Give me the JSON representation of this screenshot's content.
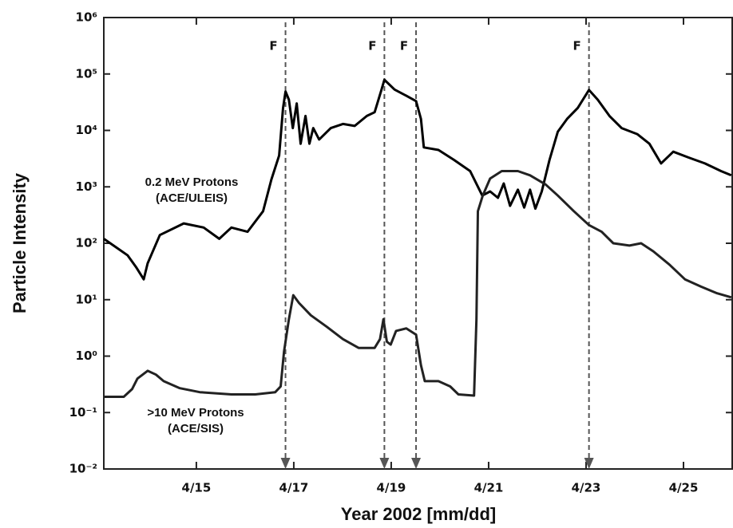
{
  "chart_data": {
    "type": "line",
    "xlabel": "Year 2002 [mm/dd]",
    "ylabel": "Particle Intensity",
    "ylog": true,
    "xlim": [
      13.1,
      26
    ],
    "ylim": [
      0.01,
      1000000
    ],
    "xticks": [
      {
        "value": 15,
        "label": "4/15"
      },
      {
        "value": 17,
        "label": "4/17"
      },
      {
        "value": 19,
        "label": "4/19"
      },
      {
        "value": 21,
        "label": "4/21"
      },
      {
        "value": 23,
        "label": "4/23"
      },
      {
        "value": 25,
        "label": "4/25"
      }
    ],
    "yticks": [
      {
        "value": 0.01,
        "label": "10⁻²"
      },
      {
        "value": 0.1,
        "label": "10⁻¹"
      },
      {
        "value": 1,
        "label": "10⁰"
      },
      {
        "value": 10,
        "label": "10¹"
      },
      {
        "value": 100,
        "label": "10²"
      },
      {
        "value": 1000,
        "label": "10³"
      },
      {
        "value": 10000,
        "label": "10⁴"
      },
      {
        "value": 100000,
        "label": "10⁵"
      },
      {
        "value": 1000000,
        "label": "10⁶"
      }
    ],
    "annotations": [
      {
        "x": 16.83,
        "label": "F"
      },
      {
        "x": 18.86,
        "label": "F"
      },
      {
        "x": 19.51,
        "label": "F"
      },
      {
        "x": 23.06,
        "label": "F"
      }
    ],
    "series": [
      {
        "name": "0.2 MeV Protons (ACE/ULEIS)",
        "color": "#000000",
        "x": [
          13.1,
          13.35,
          13.59,
          13.76,
          13.92,
          14.0,
          14.25,
          14.74,
          15.15,
          15.47,
          15.72,
          16.05,
          16.37,
          16.54,
          16.7,
          16.78,
          16.83,
          16.9,
          16.98,
          17.06,
          17.14,
          17.24,
          17.32,
          17.4,
          17.52,
          17.76,
          18.01,
          18.25,
          18.5,
          18.66,
          18.79,
          18.86,
          19.07,
          19.31,
          19.51,
          19.61,
          19.67,
          19.97,
          20.29,
          20.62,
          20.87,
          21.03,
          21.19,
          21.31,
          21.44,
          21.6,
          21.73,
          21.85,
          21.96,
          22.09,
          22.25,
          22.42,
          22.61,
          22.83,
          23.06,
          23.24,
          23.48,
          23.73,
          24.05,
          24.3,
          24.54,
          24.79,
          25.11,
          25.44,
          25.77,
          25.98
        ],
        "values": [
          120,
          85,
          61,
          38,
          23,
          44,
          140,
          225,
          190,
          120,
          190,
          160,
          370,
          1350,
          3600,
          25000,
          49000,
          35000,
          11000,
          30000,
          5800,
          18000,
          5800,
          11000,
          6900,
          11000,
          13000,
          12000,
          18000,
          21000,
          49000,
          79000,
          53000,
          41000,
          33000,
          16000,
          5000,
          4500,
          3000,
          1900,
          700,
          830,
          640,
          1150,
          460,
          890,
          430,
          890,
          410,
          830,
          3000,
          9500,
          16000,
          25000,
          52000,
          35000,
          18000,
          11000,
          8600,
          5800,
          2600,
          4200,
          3300,
          2600,
          1900,
          1600
        ]
      },
      {
        "name": ">10 MeV Protons (ACE/SIS)",
        "color": "#222222",
        "x": [
          13.1,
          13.51,
          13.68,
          13.79,
          14.0,
          14.17,
          14.33,
          14.66,
          15.07,
          15.72,
          16.21,
          16.62,
          16.73,
          16.8,
          16.9,
          16.99,
          17.11,
          17.35,
          17.68,
          18.01,
          18.33,
          18.66,
          18.77,
          18.84,
          18.91,
          18.99,
          19.1,
          19.31,
          19.51,
          19.61,
          19.69,
          19.97,
          20.21,
          20.38,
          20.7,
          20.75,
          20.78,
          20.88,
          21.03,
          21.27,
          21.6,
          21.85,
          22.17,
          22.42,
          22.75,
          23.06,
          23.32,
          23.56,
          23.89,
          24.13,
          24.38,
          24.71,
          25.03,
          25.36,
          25.69,
          25.98
        ],
        "values": [
          0.19,
          0.19,
          0.26,
          0.4,
          0.55,
          0.47,
          0.36,
          0.27,
          0.23,
          0.21,
          0.21,
          0.23,
          0.29,
          1.2,
          4.5,
          12,
          8.7,
          5.3,
          3.3,
          2.0,
          1.4,
          1.4,
          2.0,
          4.5,
          1.8,
          1.6,
          2.8,
          3.1,
          2.4,
          0.69,
          0.36,
          0.36,
          0.29,
          0.21,
          0.2,
          4.5,
          370,
          700,
          1400,
          1900,
          1900,
          1600,
          1100,
          700,
          370,
          210,
          160,
          100,
          91,
          100,
          72,
          42,
          23,
          17,
          13,
          11
        ]
      }
    ]
  }
}
